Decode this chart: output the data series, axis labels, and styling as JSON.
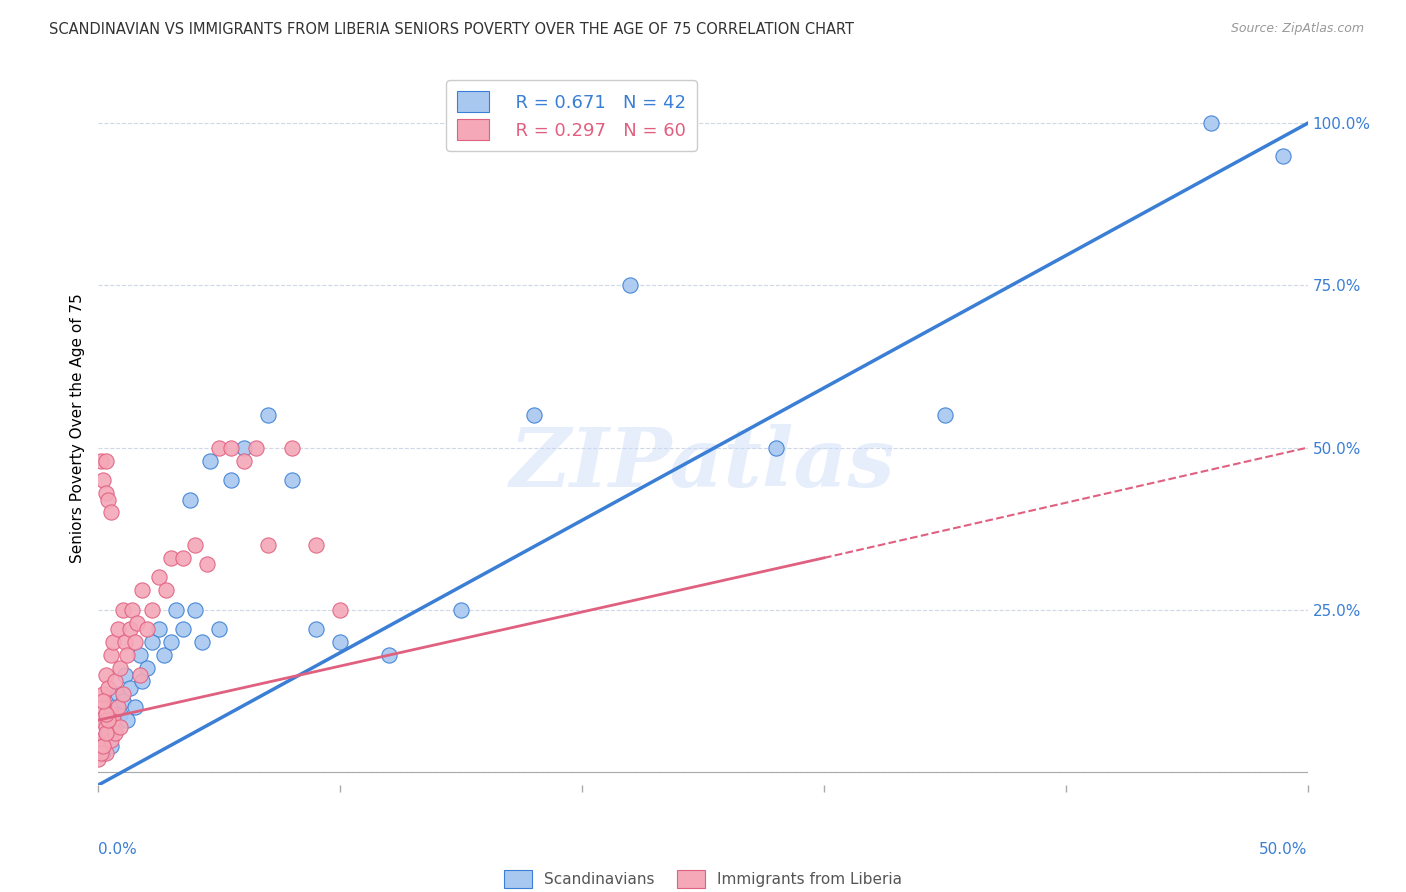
{
  "title": "SCANDINAVIAN VS IMMIGRANTS FROM LIBERIA SENIORS POVERTY OVER THE AGE OF 75 CORRELATION CHART",
  "source": "Source: ZipAtlas.com",
  "ylabel": "Seniors Poverty Over the Age of 75",
  "xlim": [
    0.0,
    0.5
  ],
  "ylim": [
    -0.02,
    1.08
  ],
  "scandinavian_color": "#a8c8f0",
  "liberia_color": "#f4a8b8",
  "trendline_scan_color": "#3a7fd5",
  "trendline_lib_color": "#e06080",
  "legend_R_scan": "R = 0.671",
  "legend_N_scan": "N = 42",
  "legend_R_lib": "R = 0.297",
  "legend_N_lib": "N = 60",
  "watermark": "ZIPatlas",
  "scandinavian_x": [
    0.001,
    0.002,
    0.003,
    0.004,
    0.005,
    0.006,
    0.007,
    0.008,
    0.009,
    0.01,
    0.011,
    0.012,
    0.013,
    0.015,
    0.017,
    0.018,
    0.02,
    0.022,
    0.025,
    0.027,
    0.03,
    0.032,
    0.035,
    0.038,
    0.04,
    0.043,
    0.046,
    0.05,
    0.055,
    0.06,
    0.07,
    0.08,
    0.09,
    0.1,
    0.12,
    0.15,
    0.18,
    0.22,
    0.28,
    0.35,
    0.46,
    0.49
  ],
  "scandinavian_y": [
    0.05,
    0.03,
    0.08,
    0.06,
    0.04,
    0.1,
    0.07,
    0.12,
    0.09,
    0.11,
    0.15,
    0.08,
    0.13,
    0.1,
    0.18,
    0.14,
    0.16,
    0.2,
    0.22,
    0.18,
    0.2,
    0.25,
    0.22,
    0.42,
    0.25,
    0.2,
    0.48,
    0.22,
    0.45,
    0.5,
    0.55,
    0.45,
    0.22,
    0.2,
    0.18,
    0.25,
    0.55,
    0.75,
    0.5,
    0.55,
    1.0,
    0.95
  ],
  "liberia_x": [
    0.0,
    0.001,
    0.001,
    0.002,
    0.002,
    0.002,
    0.003,
    0.003,
    0.003,
    0.004,
    0.004,
    0.005,
    0.005,
    0.005,
    0.006,
    0.006,
    0.007,
    0.007,
    0.008,
    0.008,
    0.009,
    0.009,
    0.01,
    0.01,
    0.011,
    0.012,
    0.013,
    0.014,
    0.015,
    0.016,
    0.017,
    0.018,
    0.02,
    0.022,
    0.025,
    0.028,
    0.03,
    0.035,
    0.04,
    0.045,
    0.05,
    0.055,
    0.06,
    0.065,
    0.07,
    0.08,
    0.09,
    0.1,
    0.001,
    0.002,
    0.003,
    0.003,
    0.004,
    0.005,
    0.001,
    0.002,
    0.003,
    0.004,
    0.003,
    0.002
  ],
  "liberia_y": [
    0.02,
    0.05,
    0.08,
    0.04,
    0.1,
    0.12,
    0.03,
    0.07,
    0.15,
    0.06,
    0.13,
    0.05,
    0.09,
    0.18,
    0.08,
    0.2,
    0.06,
    0.14,
    0.1,
    0.22,
    0.07,
    0.16,
    0.12,
    0.25,
    0.2,
    0.18,
    0.22,
    0.25,
    0.2,
    0.23,
    0.15,
    0.28,
    0.22,
    0.25,
    0.3,
    0.28,
    0.33,
    0.33,
    0.35,
    0.32,
    0.5,
    0.5,
    0.48,
    0.5,
    0.35,
    0.5,
    0.35,
    0.25,
    0.48,
    0.45,
    0.43,
    0.48,
    0.42,
    0.4,
    0.03,
    0.04,
    0.06,
    0.08,
    0.09,
    0.11
  ],
  "trendline_scan_x0": 0.0,
  "trendline_scan_y0": -0.02,
  "trendline_scan_x1": 0.5,
  "trendline_scan_y1": 1.0,
  "trendline_lib_solid_x0": 0.0,
  "trendline_lib_solid_y0": 0.08,
  "trendline_lib_solid_x1": 0.3,
  "trendline_lib_solid_y1": 0.33,
  "trendline_lib_dash_x0": 0.3,
  "trendline_lib_dash_y0": 0.33,
  "trendline_lib_dash_x1": 0.5,
  "trendline_lib_dash_y1": 0.5
}
